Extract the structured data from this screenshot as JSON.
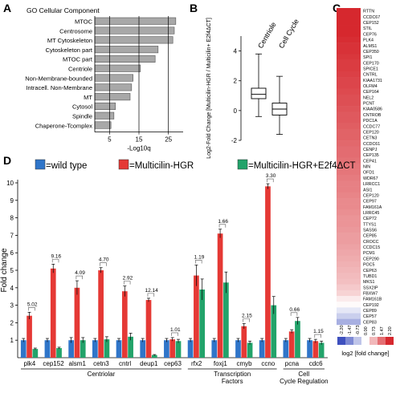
{
  "panels": {
    "A": "A",
    "B": "B",
    "C": "C",
    "D": "D"
  },
  "chart_data": [
    {
      "panel": "A",
      "type": "bar",
      "orientation": "horizontal",
      "title": "GO Cellular Component",
      "xlabel": "-Log10q",
      "xticks": [
        5,
        15,
        25
      ],
      "xlim": [
        0,
        30
      ],
      "categories": [
        "MTOC",
        "Centrosome",
        "MT Cytoskeleton",
        "Cytoskeleton part",
        "MTOC part",
        "Centriole",
        "Non-Membrane-bounded",
        "Intracell. Non-Membrane",
        "MT",
        "Cytosol",
        "Spindle",
        "Chaperone-Tcomplex"
      ],
      "values": [
        27.5,
        27,
        26.5,
        21.5,
        20.5,
        15.5,
        13,
        12.5,
        12,
        7,
        6.5,
        5.5
      ]
    },
    {
      "panel": "B",
      "type": "box",
      "ylabel": "Log2-Fold Change [Multicilin-HGR / Multicilin+ E2f4ΔCT]",
      "yticks": [
        -2,
        0,
        2,
        4
      ],
      "ylim": [
        -2,
        5
      ],
      "categories": [
        "Centriole",
        "Cell Cycle"
      ],
      "boxes": [
        {
          "name": "Centriole",
          "min": -0.4,
          "q1": 0.8,
          "median": 1.1,
          "q3": 1.5,
          "max": 3.8
        },
        {
          "name": "Cell Cycle",
          "min": -1.6,
          "q1": -0.3,
          "median": 0.1,
          "q3": 0.5,
          "max": 2.3
        }
      ]
    },
    {
      "panel": "C",
      "type": "heatmap",
      "legend_label": "log2 [fold change]",
      "legend_ticks": [
        "-2.20",
        "-1.47",
        "-0.73",
        "0.00",
        "0.73",
        "1.47",
        "2.20"
      ],
      "rows": [
        "RTTN",
        "CCDC67",
        "CEP152",
        "STIL",
        "CEP76",
        "PLK4",
        "ALMS1",
        "CEP350",
        "SPI1",
        "CEP170",
        "SPICE1",
        "CNTRL",
        "KIAA1731",
        "OLFM4",
        "CEP164",
        "NEL2",
        "PCNT",
        "KIAA0586",
        "CNTROB",
        "PDC1A",
        "CCDC77",
        "CEP120",
        "CETN3",
        "CCDC61",
        "CENPJ",
        "CEP135",
        "CEP41",
        "NIN",
        "OFD1",
        "WDR67",
        "LRRCC1",
        "ASI1",
        "CEP120",
        "CEP97",
        "FAM161A",
        "LRRC45",
        "CEP72",
        "TTYS1",
        "SASS6",
        "CEP85",
        "CROCC",
        "CCDC15",
        "PCM1",
        "CEP290",
        "POC5",
        "CEP63",
        "TUBD1",
        "MKS1",
        "SSX2IP",
        "FBXW7",
        "FAM161B",
        "CEP192",
        "CEP89",
        "CEP57",
        "CEP83"
      ],
      "values": [
        2.2,
        2.2,
        2.2,
        2.2,
        2.2,
        2.15,
        2.1,
        2.1,
        2.05,
        2.0,
        2.0,
        1.95,
        1.9,
        1.9,
        1.85,
        1.8,
        1.8,
        1.75,
        1.7,
        1.7,
        1.65,
        1.6,
        1.6,
        1.55,
        1.5,
        1.5,
        1.45,
        1.4,
        1.4,
        1.35,
        1.3,
        1.3,
        1.25,
        1.2,
        1.2,
        1.15,
        1.1,
        1.1,
        1.05,
        1.0,
        1.0,
        0.95,
        0.9,
        0.85,
        0.8,
        0.75,
        0.7,
        0.65,
        0.55,
        0.45,
        0.2,
        0.05,
        -0.3,
        -0.6,
        -1.0
      ]
    },
    {
      "panel": "D",
      "type": "bar",
      "ylabel": "Fold change",
      "ylim": [
        0,
        10
      ],
      "yticks": [
        1,
        2,
        3,
        4,
        5,
        6,
        7,
        8,
        9,
        10
      ],
      "categories": [
        "plk4",
        "cep152",
        "alsm1",
        "cetn3",
        "cntrl",
        "deup1",
        "cep63",
        "rfx2",
        "foxj1",
        "cmyb",
        "ccno",
        "pcna",
        "cdc6"
      ],
      "legend": [
        "=wild type",
        "=Multicilin-HGR",
        "=Multicilin-HGR+E2f4ΔCT"
      ],
      "colors": [
        "#2f75c9",
        "#e53935",
        "#22a36a"
      ],
      "series": [
        {
          "name": "=wild type",
          "values": [
            1.0,
            1.0,
            1.0,
            1.0,
            1.0,
            1.0,
            1.0,
            1.0,
            1.0,
            1.0,
            1.0,
            1.0,
            1.0
          ],
          "errors": [
            0.1,
            0.1,
            0.15,
            0.1,
            0.1,
            0.1,
            0.1,
            0.1,
            0.1,
            0.1,
            0.1,
            0.1,
            0.1
          ]
        },
        {
          "name": "=Multicilin-HGR",
          "values": [
            2.4,
            5.1,
            4.0,
            5.0,
            3.8,
            3.3,
            1.05,
            4.7,
            7.1,
            1.8,
            9.8,
            1.5,
            0.95
          ],
          "errors": [
            0.2,
            0.25,
            0.4,
            0.15,
            0.3,
            0.1,
            0.1,
            0.6,
            0.25,
            0.15,
            0.15,
            0.1,
            0.1
          ]
        },
        {
          "name": "=Multicilin-HGR+E2f4ΔCT",
          "values": [
            0.5,
            0.55,
            1.0,
            1.05,
            1.2,
            0.15,
            0.95,
            3.9,
            4.3,
            0.85,
            3.0,
            2.1,
            0.85
          ],
          "errors": [
            0.05,
            0.05,
            0.15,
            0.15,
            0.2,
            0.03,
            0.1,
            0.6,
            0.6,
            0.1,
            0.5,
            0.2,
            0.1
          ]
        }
      ],
      "fold_labels": [
        "5.02",
        "9.16",
        "4.09",
        "4.70",
        "2.92",
        "12.14",
        "1.01",
        "1.19",
        "1.66",
        "2.15",
        "3.30",
        "0.66",
        "1.15"
      ],
      "groups": [
        {
          "label": "Centriolar",
          "from": 0,
          "to": 6
        },
        {
          "label": "Transcription Factors",
          "from": 7,
          "to": 10
        },
        {
          "label": "Cell Cycle Regulation",
          "from": 11,
          "to": 12
        }
      ]
    }
  ]
}
